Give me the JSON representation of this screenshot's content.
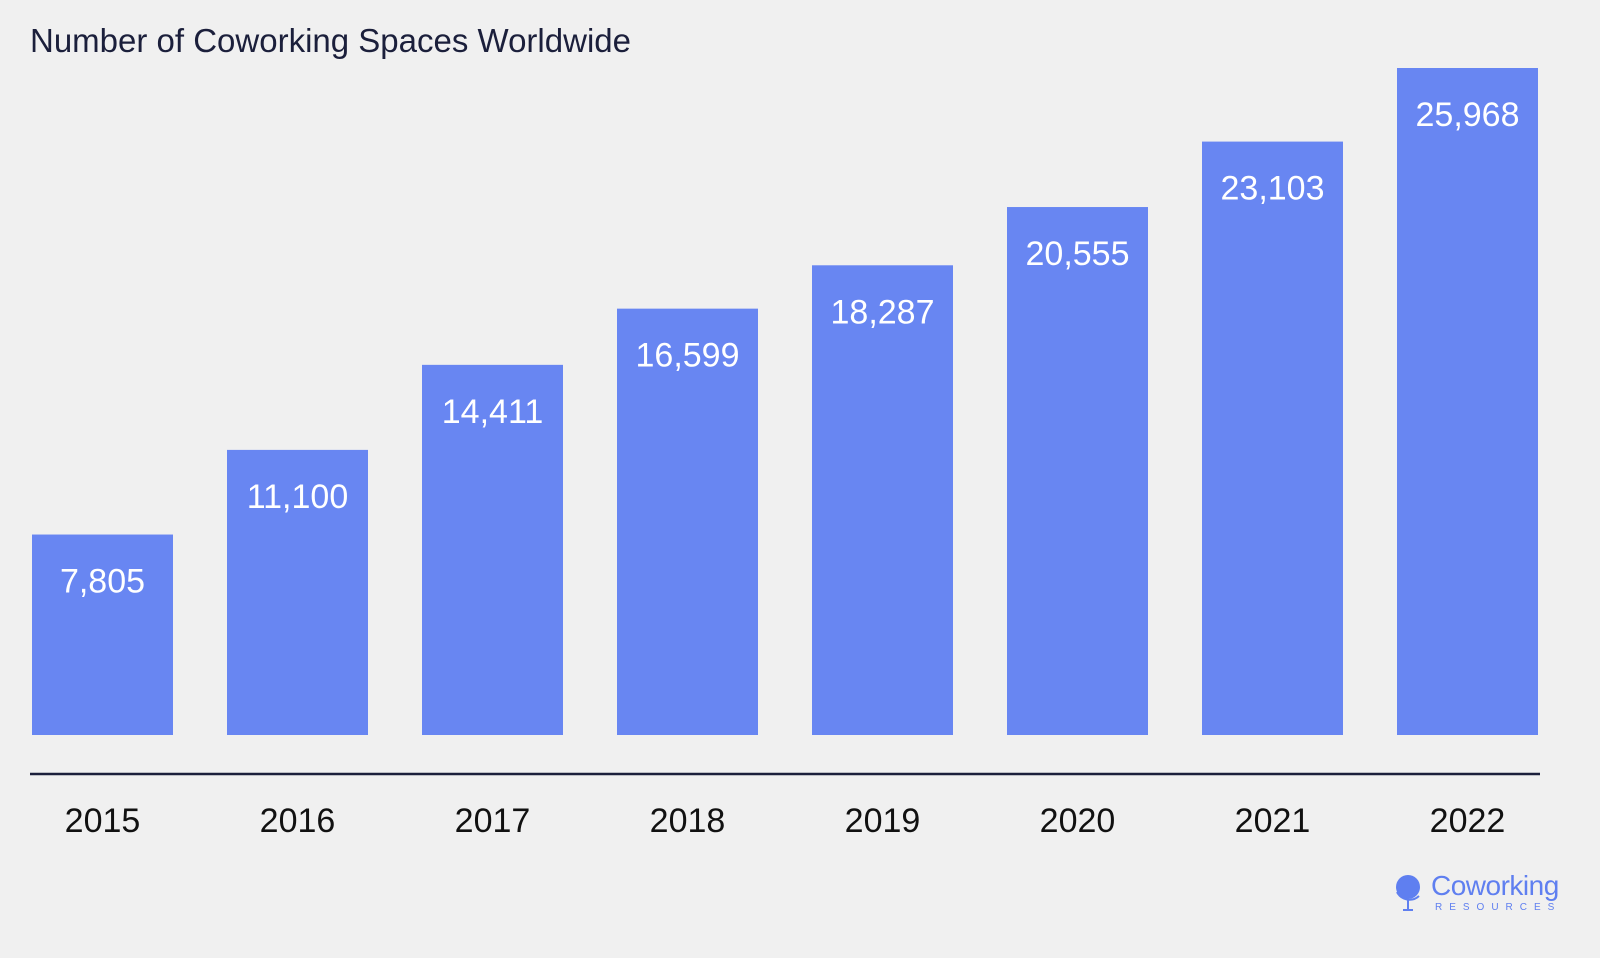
{
  "colors": {
    "background": "#f0f0f0",
    "bar": "#6886f2",
    "bar_label": "#ffffff",
    "axis": "#1b1f3b",
    "title": "#1b1f3b",
    "logo": "#5f7ff0"
  },
  "chart_data": {
    "type": "bar",
    "title": "Number of Coworking Spaces Worldwide",
    "xlabel": "",
    "ylabel": "",
    "categories": [
      "2015",
      "2016",
      "2017",
      "2018",
      "2019",
      "2020",
      "2021",
      "2022"
    ],
    "values": [
      7805,
      11100,
      14411,
      16599,
      18287,
      20555,
      23103,
      25968
    ],
    "value_labels": [
      "7,805",
      "11,100",
      "14,411",
      "16,599",
      "18,287",
      "20,555",
      "23,103",
      "25,968"
    ],
    "ylim": [
      0,
      25968
    ],
    "grid": false,
    "legend": "none"
  },
  "logo": {
    "name": "Coworking",
    "tagline": "RESOURCES",
    "icon": "globe-icon"
  }
}
